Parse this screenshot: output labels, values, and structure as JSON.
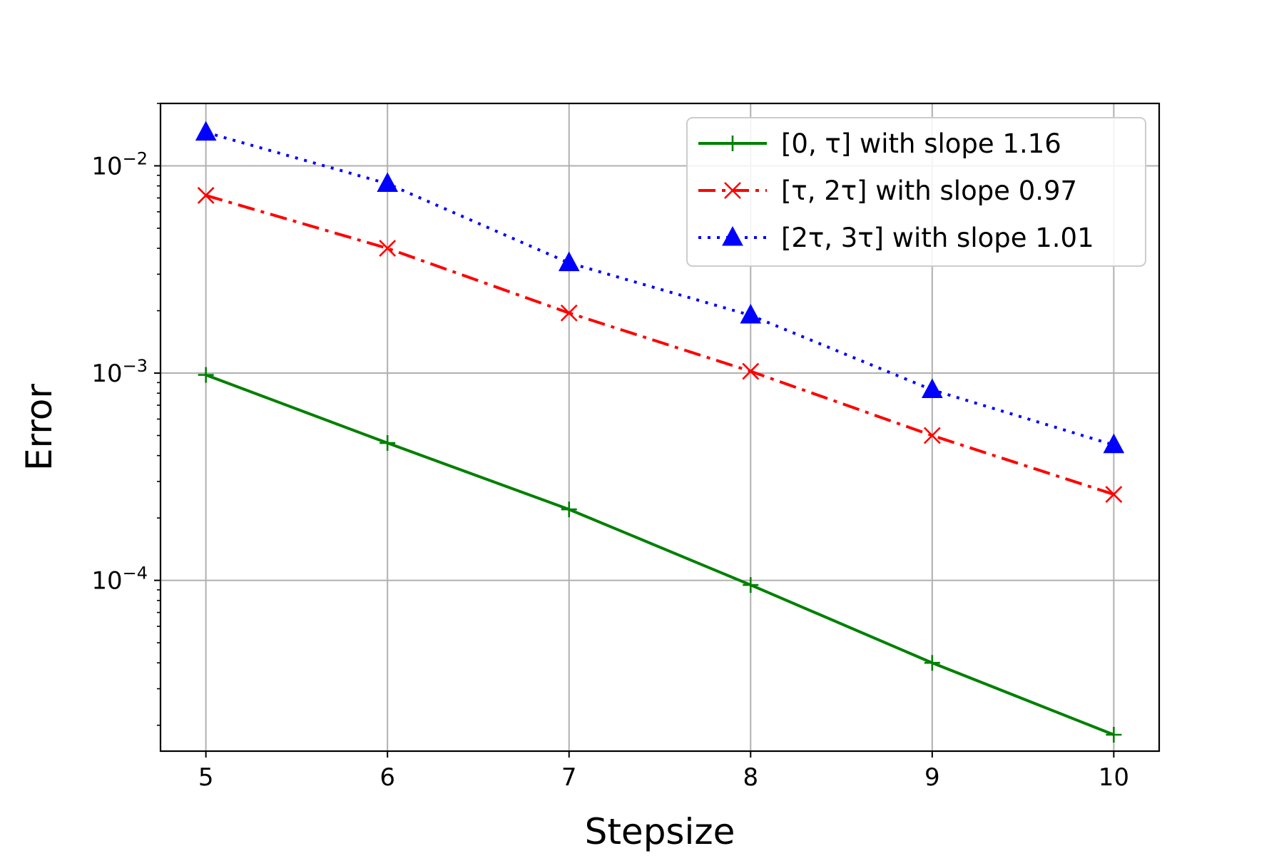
{
  "chart_data": {
    "type": "line",
    "title": "",
    "xlabel": "Stepsize",
    "ylabel": "Error",
    "x": [
      5,
      6,
      7,
      8,
      9,
      10
    ],
    "x_ticks": [
      "5",
      "6",
      "7",
      "8",
      "9",
      "10"
    ],
    "xlim": [
      4.75,
      10.25
    ],
    "y_scale": "log",
    "ylim": [
      1.5e-05,
      0.02
    ],
    "y_ticks": [
      {
        "value": 0.01,
        "base": "10",
        "exp": "−2"
      },
      {
        "value": 0.001,
        "base": "10",
        "exp": "−3"
      },
      {
        "value": 0.0001,
        "base": "10",
        "exp": "−4"
      }
    ],
    "grid": true,
    "legend_position": "top-right",
    "series": [
      {
        "name": "[0, τ] with slope 1.16",
        "values": [
          0.00098,
          0.00046,
          0.00022,
          9.5e-05,
          4e-05,
          1.8e-05
        ],
        "color": "#008000",
        "linestyle": "solid",
        "marker": "plus"
      },
      {
        "name": "[τ, 2τ] with slope 0.97",
        "values": [
          0.0072,
          0.004,
          0.00195,
          0.00102,
          0.0005,
          0.00026
        ],
        "color": "#ff0000",
        "linestyle": "dashdot",
        "marker": "x"
      },
      {
        "name": "[2τ, 3τ] with slope 1.01",
        "values": [
          0.0145,
          0.0082,
          0.0034,
          0.0019,
          0.00083,
          0.00045
        ],
        "color": "#0000ff",
        "linestyle": "dotted",
        "marker": "triangle"
      }
    ]
  }
}
